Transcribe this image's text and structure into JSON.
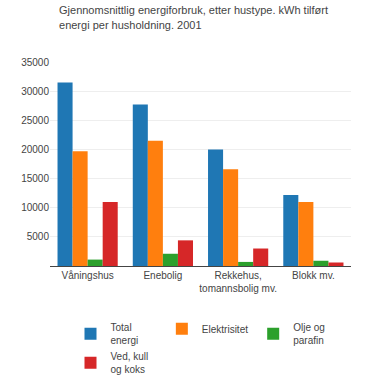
{
  "chart_data": {
    "type": "bar",
    "title": "Gjennomsnittlig energiforbruk, etter hustype. kWh tilført\nenergi per husholdning. 2001",
    "categories": [
      "Våningshus",
      "Enebolig",
      "Rekkehus,\ntomannsbolig mv.",
      "Blokk mv."
    ],
    "series": [
      {
        "name": "Total\nenergi",
        "values": [
          31500,
          27700,
          20000,
          12200
        ]
      },
      {
        "name": "Elektrisitet",
        "values": [
          19700,
          21500,
          16600,
          11000
        ]
      },
      {
        "name": "Olje og\nparafin",
        "values": [
          1100,
          2100,
          700,
          900
        ]
      },
      {
        "name": "Ved, kull\nog koks",
        "values": [
          11000,
          4400,
          3000,
          600
        ]
      }
    ],
    "ylim": [
      0,
      35000
    ],
    "yticks": [
      5000,
      10000,
      15000,
      20000,
      25000,
      30000,
      35000
    ],
    "grid": true,
    "legend": "bottom"
  }
}
